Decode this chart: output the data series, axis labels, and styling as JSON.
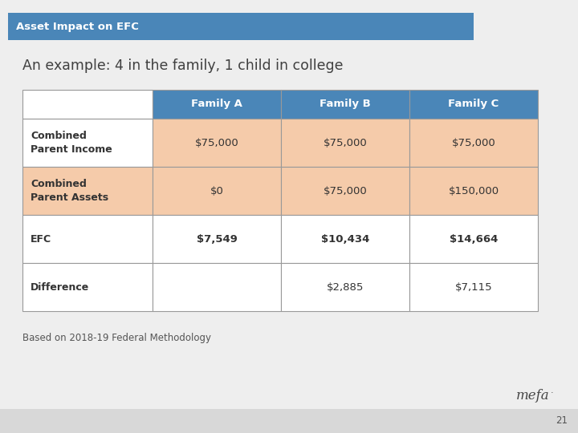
{
  "title_bar_text": "Asset Impact on EFC",
  "title_bar_bg": "#4a86b8",
  "title_bar_text_color": "#ffffff",
  "subtitle": "An example: 4 in the family, 1 child in college",
  "subtitle_color": "#404040",
  "slide_bg": "#eeeeee",
  "footer_text": "Based on 2018-19 Federal Methodology",
  "footer_color": "#555555",
  "page_number": "21",
  "bottom_bar_bg": "#d8d8d8",
  "table": {
    "col_headers": [
      "",
      "Family A",
      "Family B",
      "Family C"
    ],
    "col_header_bg": "#4a86b8",
    "col_header_text_color": "#ffffff",
    "rows": [
      {
        "label": "Combined\nParent Income",
        "values": [
          "$75,000",
          "$75,000",
          "$75,000"
        ],
        "label_bg": "#ffffff",
        "label_text_color": "#333333",
        "label_bold": true,
        "value_bg": [
          "#f5cbaa",
          "#f5cbaa",
          "#f5cbaa"
        ],
        "value_text_color": "#333333",
        "value_bold": false
      },
      {
        "label": "Combined\nParent Assets",
        "values": [
          "$0",
          "$75,000",
          "$150,000"
        ],
        "label_bg": "#f5cbaa",
        "label_text_color": "#333333",
        "label_bold": true,
        "value_bg": [
          "#f5cbaa",
          "#f5cbaa",
          "#f5cbaa"
        ],
        "value_text_color": "#333333",
        "value_bold": false
      },
      {
        "label": "EFC",
        "values": [
          "$7,549",
          "$10,434",
          "$14,664"
        ],
        "label_bg": "#ffffff",
        "label_text_color": "#333333",
        "label_bold": true,
        "value_bg": [
          "#ffffff",
          "#ffffff",
          "#ffffff"
        ],
        "value_text_color": "#333333",
        "value_bold": true
      },
      {
        "label": "Difference",
        "values": [
          "",
          "$2,885",
          "$7,115"
        ],
        "label_bg": "#ffffff",
        "label_text_color": "#333333",
        "label_bold": true,
        "value_bg": [
          "#ffffff",
          "#ffffff",
          "#ffffff"
        ],
        "value_text_color": "#333333",
        "value_bold": false
      }
    ]
  }
}
